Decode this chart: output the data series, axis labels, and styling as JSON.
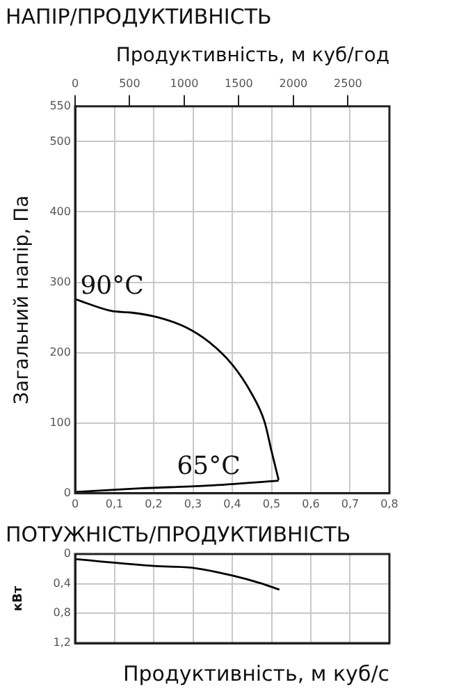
{
  "chart_data": [
    {
      "type": "line",
      "title": "НАПІР/ПРОДУКТИВНІСТЬ",
      "x2label": "Продуктивність, м куб/год",
      "ylabel": "Загальний напір, Па",
      "xlim": [
        0,
        0.8
      ],
      "xticks": [
        0,
        {
          "value": 0.1,
          "label": "0,1"
        },
        {
          "value": 0.2,
          "label": "0,2"
        },
        {
          "value": 0.3,
          "label": "0,3"
        },
        {
          "value": 0.4,
          "label": "0,4"
        },
        {
          "value": 0.5,
          "label": "0,5"
        },
        {
          "value": 0.6,
          "label": "0,6"
        },
        {
          "value": 0.7,
          "label": "0,7"
        },
        {
          "value": 0.8,
          "label": "0,8"
        }
      ],
      "x2lim": [
        0,
        2880
      ],
      "x2ticks": [
        0,
        500,
        1000,
        1500,
        2000,
        2500
      ],
      "ylim": [
        0,
        550
      ],
      "yticks": [
        0,
        100,
        200,
        300,
        400,
        500,
        550
      ],
      "grid": true,
      "marker": "none",
      "series": [
        {
          "name": "90°C",
          "color": "#000000",
          "x": [
            0,
            0.094,
            0.141,
            0.212,
            0.282,
            0.341,
            0.4,
            0.447,
            0.482,
            0.5,
            0.518
          ],
          "values": [
            276,
            259,
            257,
            250,
            236,
            215,
            183,
            144,
            102,
            60,
            19
          ]
        },
        {
          "name": "65°C",
          "color": "#000000",
          "x": [
            0,
            0.165,
            0.34,
            0.518
          ],
          "values": [
            2,
            7,
            11,
            18
          ]
        }
      ]
    },
    {
      "type": "line",
      "title": "ПОТУЖНІСТЬ/ПРОДУКТИВНІСТЬ",
      "xlabel": "Продуктивність, м куб/с",
      "ylabel": "кВт",
      "xlim": [
        0,
        0.8
      ],
      "xticks": [
        0,
        {
          "value": 0.1,
          "label": null
        },
        {
          "value": 0.2,
          "label": null
        },
        {
          "value": 0.3,
          "label": null
        },
        {
          "value": 0.4,
          "label": null
        },
        {
          "value": 0.5,
          "label": null
        },
        {
          "value": 0.6,
          "label": null
        },
        {
          "value": 0.7,
          "label": null
        },
        {
          "value": 0.8,
          "label": null
        }
      ],
      "ylim": [
        1.2,
        0
      ],
      "yticks": [
        0,
        {
          "value": 0.4,
          "label": "0,4"
        },
        {
          "value": 0.8,
          "label": "0,8"
        },
        {
          "value": 1.2,
          "label": "1,2"
        }
      ],
      "grid": true,
      "marker": "none",
      "tick_labels": "y",
      "series": [
        {
          "color": "#000000",
          "x": [
            0,
            0.2,
            0.306,
            0.4,
            0.47,
            0.52
          ],
          "values": [
            0.07,
            0.16,
            0.19,
            0.29,
            0.39,
            0.48
          ]
        }
      ]
    }
  ]
}
